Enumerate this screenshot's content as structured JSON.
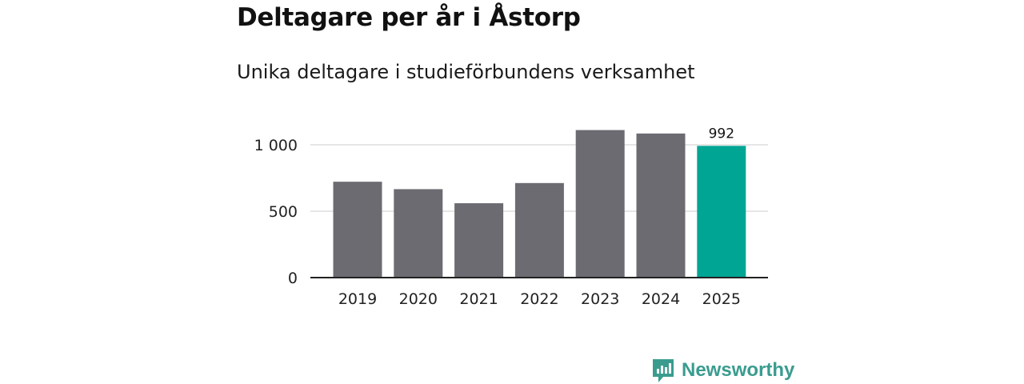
{
  "title": "Deltagare per år i Åstorp",
  "subtitle": "Unika deltagare i studieförbundens verksamhet",
  "brand": {
    "name": "Newsworthy",
    "icon": "newsworthy-logo-icon"
  },
  "colors": {
    "bar": "#6c6b72",
    "highlight": "#00a594",
    "grid": "#dddddd",
    "axis": "#222222",
    "brand": "#3a9c8f"
  },
  "chart_data": {
    "type": "bar",
    "title": "Deltagare per år i Åstorp",
    "subtitle": "Unika deltagare i studieförbundens verksamhet",
    "xlabel": "",
    "ylabel": "",
    "categories": [
      "2019",
      "2020",
      "2021",
      "2022",
      "2023",
      "2024",
      "2025"
    ],
    "values": [
      722,
      666,
      560,
      712,
      1111,
      1085,
      992
    ],
    "highlight_index": 6,
    "data_labels": [
      {
        "index": 6,
        "text": "992"
      }
    ],
    "ylim": [
      0,
      1150
    ],
    "yticks": [
      0,
      500,
      1000
    ],
    "ytick_labels": [
      "0",
      "500",
      "1 000"
    ],
    "grid": true
  }
}
